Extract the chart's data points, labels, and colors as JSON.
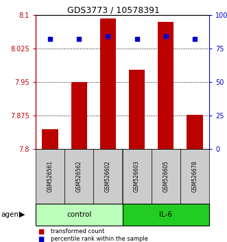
{
  "title": "GDS3773 / 10578391",
  "samples": [
    "GSM526561",
    "GSM526562",
    "GSM526602",
    "GSM526603",
    "GSM526605",
    "GSM526678"
  ],
  "red_values": [
    7.845,
    7.95,
    8.092,
    7.978,
    8.085,
    7.876
  ],
  "blue_values": [
    82,
    82,
    84,
    82,
    84,
    82
  ],
  "ylim_left": [
    7.8,
    8.1
  ],
  "ylim_right": [
    0,
    100
  ],
  "yticks_left": [
    7.8,
    7.875,
    7.95,
    8.025,
    8.1
  ],
  "yticks_right": [
    0,
    25,
    50,
    75,
    100
  ],
  "ytick_labels_left": [
    "7.8",
    "7.875",
    "7.95",
    "8.025",
    "8.1"
  ],
  "ytick_labels_right": [
    "0",
    "25",
    "50",
    "75",
    "100%"
  ],
  "red_color": "#bb0000",
  "blue_color": "#0000cc",
  "bar_width": 0.55,
  "group_control_color": "#bbffbb",
  "group_il6_color": "#22cc22",
  "agent_label": "agent",
  "legend_red": "transformed count",
  "legend_blue": "percentile rank within the sample",
  "label_box_color": "#cccccc"
}
